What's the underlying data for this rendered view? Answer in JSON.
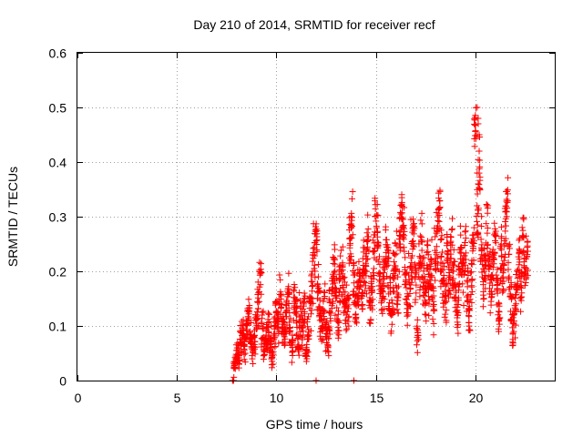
{
  "chart_data": {
    "type": "scatter",
    "title": "Day 210 of 2014, SRMTID for receiver recf",
    "xlabel": "GPS time / hours",
    "ylabel": "SRMTID / TECUs",
    "xlim": [
      0,
      24
    ],
    "ylim": [
      0,
      0.6
    ],
    "xticks": [
      "0",
      "5",
      "10",
      "15",
      "20"
    ],
    "yticks": [
      "0",
      "0.1",
      "0.2",
      "0.3",
      "0.4",
      "0.5",
      "0.6"
    ],
    "grid": true,
    "marker": "plus",
    "color": "#ff0000",
    "series": [
      {
        "name": "recf",
        "x": [
          7.8,
          7.9,
          8.0,
          8.1,
          8.2,
          8.3,
          8.4,
          8.5,
          8.6,
          8.7,
          8.8,
          8.9,
          9.0,
          9.1,
          9.2,
          9.3,
          9.4,
          9.5,
          9.6,
          9.7,
          9.8,
          9.9,
          10.0,
          10.1,
          10.2,
          10.3,
          10.4,
          10.5,
          10.6,
          10.7,
          10.8,
          10.9,
          11.0,
          11.1,
          11.2,
          11.3,
          11.4,
          11.5,
          11.6,
          11.7,
          11.8,
          11.9,
          12.0,
          12.1,
          12.2,
          12.3,
          12.4,
          12.5,
          12.6,
          12.7,
          12.8,
          12.9,
          13.0,
          13.1,
          13.2,
          13.3,
          13.4,
          13.5,
          13.6,
          13.7,
          13.8,
          13.9,
          14.0,
          14.1,
          14.2,
          14.3,
          14.4,
          14.5,
          14.6,
          14.7,
          14.8,
          14.9,
          15.0,
          15.1,
          15.2,
          15.3,
          15.4,
          15.5,
          15.6,
          15.7,
          15.8,
          15.9,
          16.0,
          16.1,
          16.2,
          16.3,
          16.4,
          16.5,
          16.6,
          16.7,
          16.8,
          16.9,
          17.0,
          17.1,
          17.2,
          17.3,
          17.4,
          17.5,
          17.6,
          17.7,
          17.8,
          17.9,
          18.0,
          18.1,
          18.2,
          18.3,
          18.4,
          18.5,
          18.6,
          18.7,
          18.8,
          18.9,
          19.0,
          19.1,
          19.2,
          19.3,
          19.4,
          19.5,
          19.6,
          19.7,
          19.8,
          19.9,
          20.0,
          20.1,
          20.2,
          20.3,
          20.4,
          20.5,
          20.6,
          20.7,
          20.8,
          20.9,
          21.0,
          21.1,
          21.2,
          21.3,
          21.4,
          21.5,
          21.6,
          21.7,
          21.8,
          21.9,
          22.0,
          22.1,
          22.2,
          22.3,
          22.4,
          22.5,
          22.6
        ],
        "y": [
          0.0,
          0.03,
          0.05,
          0.04,
          0.07,
          0.09,
          0.06,
          0.1,
          0.12,
          0.08,
          0.05,
          0.07,
          0.11,
          0.14,
          0.2,
          0.09,
          0.06,
          0.08,
          0.1,
          0.07,
          0.04,
          0.09,
          0.13,
          0.11,
          0.15,
          0.1,
          0.08,
          0.12,
          0.16,
          0.09,
          0.06,
          0.14,
          0.11,
          0.07,
          0.12,
          0.1,
          0.13,
          0.05,
          0.09,
          0.14,
          0.18,
          0.22,
          0.27,
          0.16,
          0.12,
          0.1,
          0.14,
          0.09,
          0.08,
          0.13,
          0.17,
          0.2,
          0.15,
          0.11,
          0.18,
          0.21,
          0.16,
          0.12,
          0.14,
          0.24,
          0.28,
          0.18,
          0.13,
          0.16,
          0.2,
          0.15,
          0.22,
          0.19,
          0.25,
          0.13,
          0.17,
          0.23,
          0.3,
          0.26,
          0.2,
          0.16,
          0.19,
          0.24,
          0.2,
          0.15,
          0.12,
          0.18,
          0.22,
          0.16,
          0.25,
          0.31,
          0.27,
          0.19,
          0.14,
          0.17,
          0.22,
          0.26,
          0.18,
          0.09,
          0.21,
          0.24,
          0.19,
          0.15,
          0.22,
          0.17,
          0.2,
          0.14,
          0.21,
          0.27,
          0.32,
          0.23,
          0.18,
          0.15,
          0.22,
          0.19,
          0.25,
          0.2,
          0.16,
          0.13,
          0.18,
          0.23,
          0.2,
          0.24,
          0.17,
          0.12,
          0.19,
          0.25,
          0.47,
          0.3,
          0.36,
          0.24,
          0.18,
          0.21,
          0.29,
          0.22,
          0.16,
          0.2,
          0.26,
          0.18,
          0.13,
          0.23,
          0.19,
          0.27,
          0.34,
          0.21,
          0.15,
          0.09,
          0.12,
          0.18,
          0.23,
          0.16,
          0.25,
          0.2,
          0.22
        ],
        "spread": [
          0.0,
          0.03,
          0.04,
          0.04,
          0.04,
          0.05,
          0.05,
          0.05,
          0.05,
          0.05,
          0.04,
          0.04,
          0.05,
          0.06,
          0.05,
          0.05,
          0.05,
          0.05,
          0.06,
          0.05,
          0.04,
          0.05,
          0.06,
          0.06,
          0.06,
          0.06,
          0.05,
          0.06,
          0.06,
          0.05,
          0.05,
          0.06,
          0.06,
          0.05,
          0.06,
          0.05,
          0.06,
          0.04,
          0.05,
          0.06,
          0.07,
          0.08,
          0.06,
          0.07,
          0.07,
          0.06,
          0.07,
          0.06,
          0.06,
          0.07,
          0.07,
          0.08,
          0.07,
          0.06,
          0.07,
          0.08,
          0.07,
          0.06,
          0.07,
          0.08,
          0.08,
          0.07,
          0.06,
          0.07,
          0.08,
          0.07,
          0.08,
          0.07,
          0.08,
          0.06,
          0.07,
          0.08,
          0.09,
          0.08,
          0.07,
          0.07,
          0.08,
          0.08,
          0.08,
          0.07,
          0.06,
          0.07,
          0.08,
          0.07,
          0.08,
          0.09,
          0.08,
          0.07,
          0.06,
          0.07,
          0.08,
          0.08,
          0.07,
          0.05,
          0.08,
          0.08,
          0.07,
          0.07,
          0.08,
          0.07,
          0.08,
          0.07,
          0.08,
          0.08,
          0.09,
          0.08,
          0.07,
          0.07,
          0.08,
          0.07,
          0.08,
          0.08,
          0.07,
          0.06,
          0.07,
          0.08,
          0.08,
          0.08,
          0.07,
          0.06,
          0.07,
          0.08,
          0.05,
          0.09,
          0.1,
          0.08,
          0.07,
          0.08,
          0.09,
          0.08,
          0.07,
          0.08,
          0.08,
          0.07,
          0.06,
          0.08,
          0.07,
          0.08,
          0.07,
          0.08,
          0.07,
          0.05,
          0.06,
          0.07,
          0.08,
          0.07,
          0.08,
          0.08,
          0.07
        ],
        "density": 14,
        "near_zero_points": [
          [
            7.8,
            0.0
          ],
          [
            7.85,
            0.0
          ],
          [
            12.0,
            0.0
          ],
          [
            13.9,
            0.0
          ]
        ]
      }
    ]
  }
}
